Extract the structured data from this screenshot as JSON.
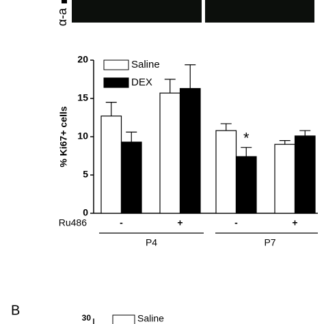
{
  "chart_data": {
    "type": "bar",
    "ylabel": "% Ki67+ cells",
    "categories": [
      "-",
      "+",
      "-",
      "+"
    ],
    "row_label": "Ru486",
    "group_labels": [
      "P4",
      "P7"
    ],
    "series": [
      {
        "name": "Saline",
        "color": "#ffffff",
        "values": [
          12.7,
          15.7,
          10.8,
          9.0
        ],
        "errors": [
          1.8,
          1.8,
          0.9,
          0.5
        ]
      },
      {
        "name": "DEX",
        "color": "#000000",
        "values": [
          9.3,
          16.3,
          7.4,
          10.1
        ],
        "errors": [
          1.3,
          3.1,
          1.2,
          0.7
        ]
      }
    ],
    "annotations": [
      {
        "text": "*"
      }
    ],
    "ylim": [
      0,
      20
    ],
    "yticks": [
      0,
      5,
      10,
      15,
      20
    ],
    "grid": false
  },
  "image_label": "α-a",
  "panel_b": {
    "label": "B",
    "ytick": "30",
    "legend": "Saline"
  }
}
